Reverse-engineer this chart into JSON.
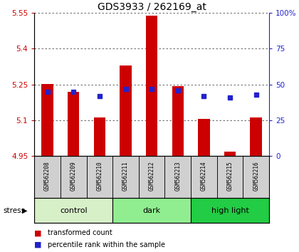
{
  "title": "GDS3933 / 262169_at",
  "samples": [
    "GSM562208",
    "GSM562209",
    "GSM562210",
    "GSM562211",
    "GSM562212",
    "GSM562213",
    "GSM562214",
    "GSM562215",
    "GSM562216"
  ],
  "transformed_counts": [
    5.253,
    5.218,
    5.112,
    5.328,
    5.537,
    5.243,
    5.105,
    4.968,
    5.112
  ],
  "percentile_ranks": [
    45,
    45,
    42,
    47,
    47,
    46,
    42,
    41,
    43
  ],
  "ylim_left": [
    4.95,
    5.55
  ],
  "yticks_left": [
    4.95,
    5.1,
    5.25,
    5.4,
    5.55
  ],
  "ytick_labels_left": [
    "4.95",
    "5.1",
    "5.25",
    "5.4",
    "5.55"
  ],
  "ylim_right": [
    0,
    100
  ],
  "yticks_right": [
    0,
    25,
    50,
    75,
    100
  ],
  "ytick_labels_right": [
    "0",
    "25",
    "50",
    "75",
    "100%"
  ],
  "groups": [
    {
      "label": "control",
      "start": 0,
      "end": 3,
      "color": "#d8f0c8"
    },
    {
      "label": "dark",
      "start": 3,
      "end": 6,
      "color": "#90ee90"
    },
    {
      "label": "high light",
      "start": 6,
      "end": 9,
      "color": "#22cc44"
    }
  ],
  "bar_color": "#cc0000",
  "dot_color": "#2222cc",
  "bar_bottom": 4.95,
  "stress_label": "stress",
  "legend_items": [
    {
      "color": "#cc0000",
      "label": "transformed count"
    },
    {
      "color": "#2222cc",
      "label": "percentile rank within the sample"
    }
  ]
}
